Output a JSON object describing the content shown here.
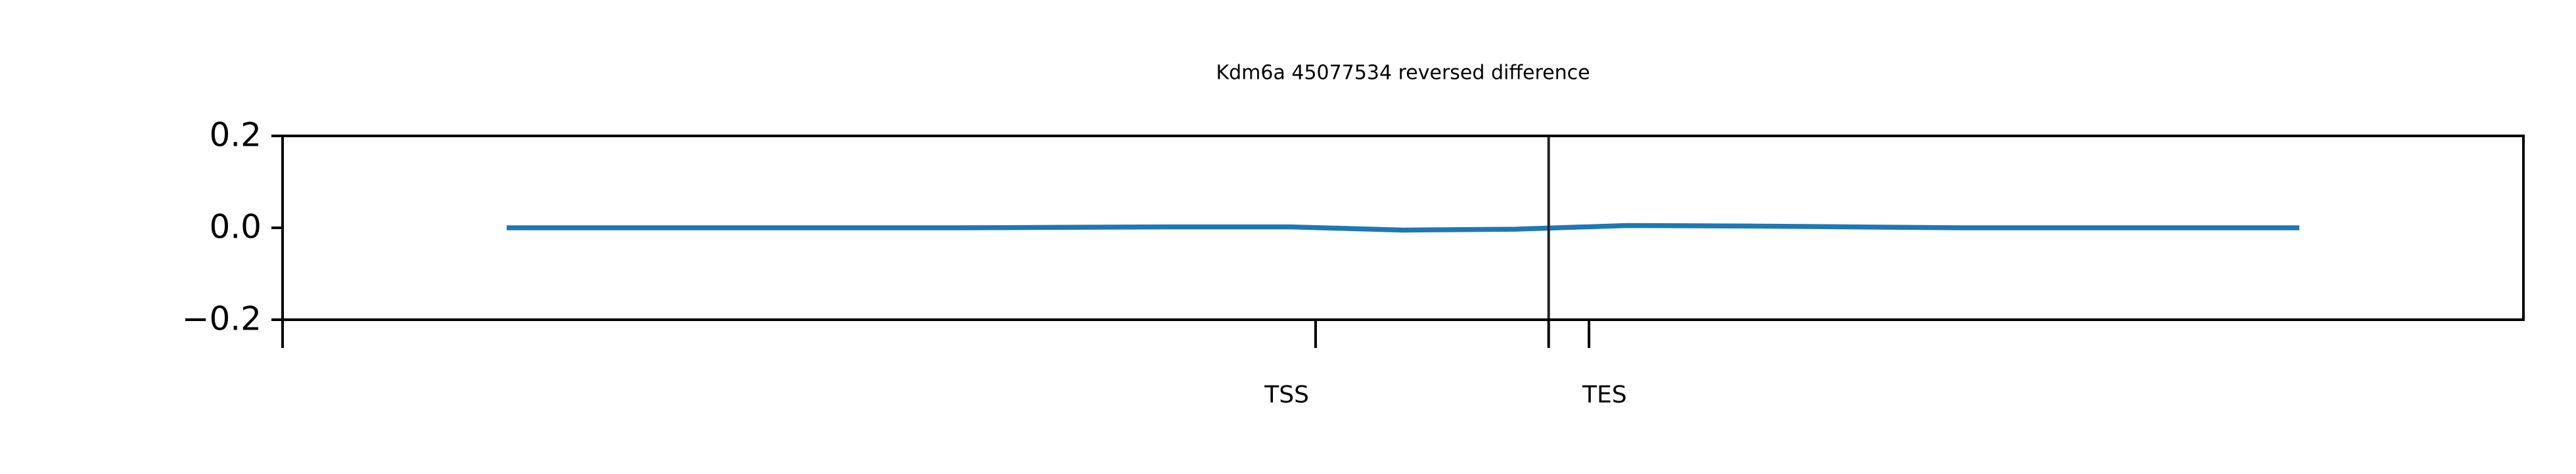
{
  "chart_data": {
    "type": "line",
    "title": "Kdm6a 45077534 reversed difference",
    "x": [
      10,
      15,
      20,
      25,
      30,
      35,
      40,
      45,
      50,
      55,
      60,
      65,
      70,
      75,
      80,
      85,
      90
    ],
    "series": [
      {
        "color": "#1f77b4",
        "values": [
          0,
          0,
          0,
          0,
          0,
          0.001,
          0.002,
          0.002,
          -0.005,
          -0.003,
          0.005,
          0.004,
          0.002,
          0,
          0,
          0,
          0
        ]
      }
    ],
    "xlim": [
      0,
      100
    ],
    "xticks": [
      {
        "value": 46.1,
        "label": "TSS"
      },
      {
        "value": 58.3,
        "label": "TES"
      }
    ],
    "xminorticks": [
      0,
      56.5
    ],
    "vline": 56.5,
    "ylim": [
      -0.2,
      0.2
    ],
    "yticks": [
      {
        "value": -0.2,
        "label": "−0.2"
      },
      {
        "value": 0,
        "label": "0.0"
      },
      0.2
    ],
    "grid": false
  }
}
